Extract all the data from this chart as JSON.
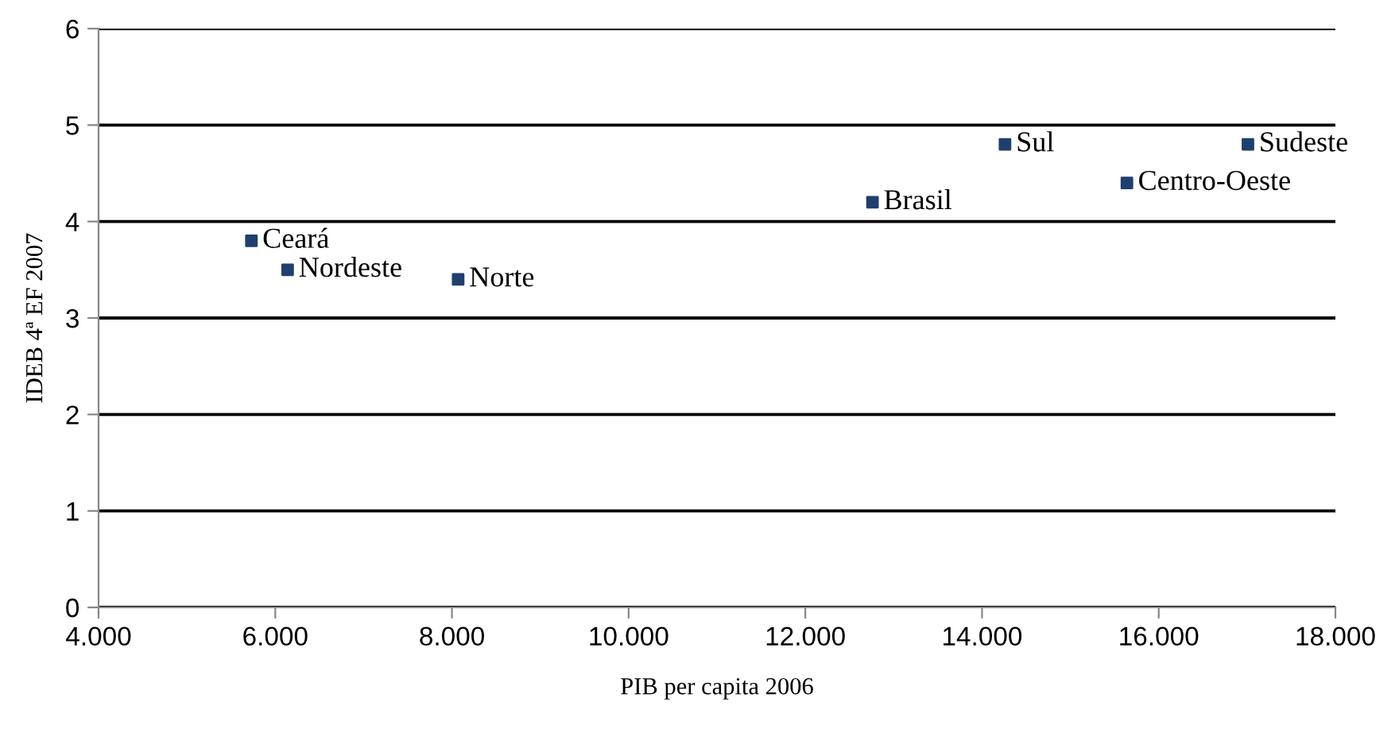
{
  "chart_data": {
    "type": "scatter",
    "xlabel": "PIB per capita 2006",
    "ylabel": "IDEB 4ª EF 2007",
    "x": [
      5730,
      6140,
      8070,
      12760,
      14260,
      15640,
      17010
    ],
    "series": [
      {
        "color": "#1f3f6e",
        "values": [
          3.8,
          3.5,
          3.4,
          4.2,
          4.8,
          4.4,
          4.8
        ]
      }
    ],
    "marker": "square",
    "grid": "y",
    "xlim": [
      4000,
      18000
    ],
    "ylim": [
      0,
      6
    ],
    "xticks": [
      {
        "value": 4000,
        "label": "4.000"
      },
      {
        "value": 6000,
        "label": "6.000"
      },
      {
        "value": 8000,
        "label": "8.000"
      },
      {
        "value": 10000,
        "label": "10.000"
      },
      {
        "value": 12000,
        "label": "12.000"
      },
      {
        "value": 14000,
        "label": "14.000"
      },
      {
        "value": 16000,
        "label": "16.000"
      },
      {
        "value": 18000,
        "label": "18.000"
      }
    ],
    "yticks": [
      0,
      1,
      2,
      3,
      4,
      5,
      6
    ],
    "annotations": [
      {
        "text": "Ceará",
        "x": 5730,
        "y": 3.8
      },
      {
        "text": "Nordeste",
        "x": 6140,
        "y": 3.5
      },
      {
        "text": "Norte",
        "x": 8070,
        "y": 3.4
      },
      {
        "text": "Brasil",
        "x": 12760,
        "y": 4.2
      },
      {
        "text": "Sul",
        "x": 14260,
        "y": 4.8
      },
      {
        "text": "Centro-Oeste",
        "x": 15640,
        "y": 4.4
      },
      {
        "text": "Sudeste",
        "x": 17010,
        "y": 4.8
      }
    ]
  }
}
